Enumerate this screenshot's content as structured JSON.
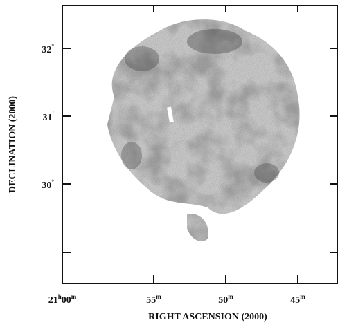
{
  "x_axis": {
    "label": "RIGHT ASCENSION (2000)",
    "ticks": [
      [
        {
          "text": "21"
        },
        {
          "text": "h",
          "sup": true
        },
        {
          "text": "00"
        },
        {
          "text": "m",
          "sup": true
        }
      ],
      [
        {
          "text": "55"
        },
        {
          "text": "m",
          "sup": true
        }
      ],
      [
        {
          "text": "50"
        },
        {
          "text": "m",
          "sup": true
        }
      ],
      [
        {
          "text": "45"
        },
        {
          "text": "m",
          "sup": true
        }
      ]
    ]
  },
  "y_axis": {
    "label": "DECLINATION (2000)",
    "ticks": [
      [
        {
          "text": "32"
        },
        {
          "text": "°",
          "sup": true
        }
      ],
      [
        {
          "text": "31"
        },
        {
          "text": "′",
          "sup": true
        }
      ],
      [
        {
          "text": "30"
        },
        {
          "text": "°",
          "sup": true
        }
      ]
    ]
  }
}
